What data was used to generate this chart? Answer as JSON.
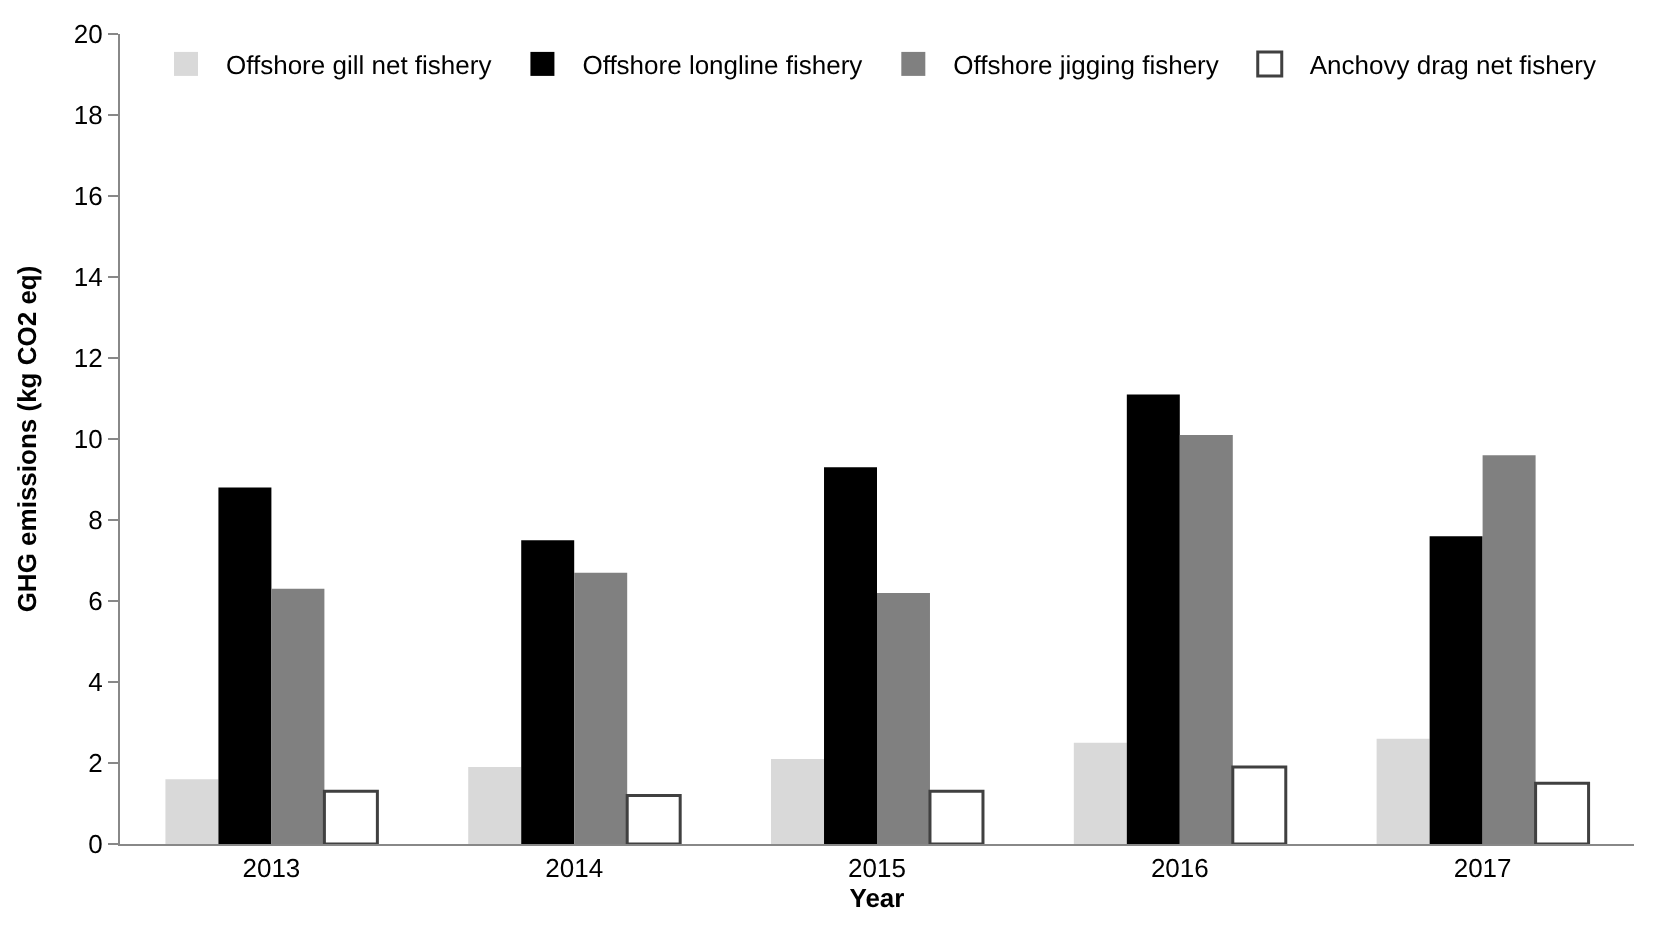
{
  "chart_data": {
    "type": "bar",
    "xlabel": "Year",
    "ylabel": "GHG emissions (kg CO2 eq)",
    "categories": [
      "2013",
      "2014",
      "2015",
      "2016",
      "2017"
    ],
    "series": [
      {
        "name": "Offshore gill net fishery",
        "color": "#d9d9d9",
        "values": [
          1.6,
          1.9,
          2.1,
          2.5,
          2.6
        ]
      },
      {
        "name": "Offshore longline fishery",
        "color": "#000000",
        "values": [
          8.8,
          7.5,
          9.3,
          11.1,
          7.6
        ]
      },
      {
        "name": "Offshore jigging fishery",
        "color": "#808080",
        "values": [
          6.3,
          6.7,
          6.2,
          10.1,
          9.6
        ]
      },
      {
        "name": "Anchovy drag net fishery",
        "color": "#ffffff",
        "values": [
          1.3,
          1.2,
          1.3,
          1.9,
          1.5
        ]
      }
    ],
    "ylim": [
      0,
      20
    ],
    "yticks": [
      0,
      2,
      4,
      6,
      8,
      10,
      12,
      14,
      16,
      18,
      20
    ],
    "legend": "top"
  }
}
